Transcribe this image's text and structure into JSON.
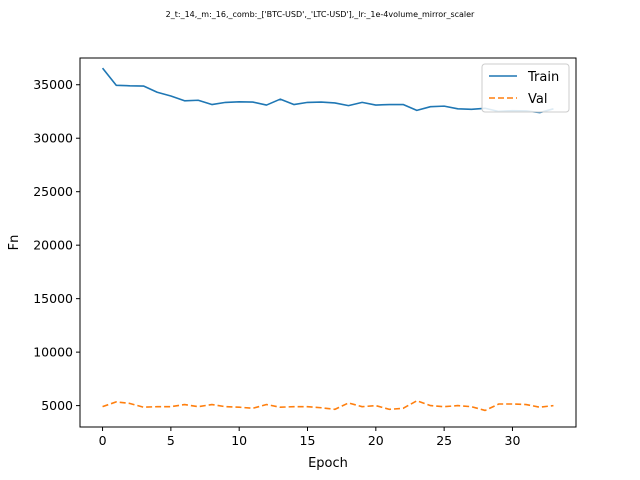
{
  "chart_data": {
    "type": "line",
    "title": "2_t:_14,_m:_16,_comb:_['BTC-USD',_'LTC-USD'],_lr:_1e-4volume_mirror_scaler",
    "xlabel": "Epoch",
    "ylabel": "Fn",
    "xlim": [
      -1.65,
      34.65
    ],
    "ylim": [
      3000,
      37500
    ],
    "xticks": [
      0,
      5,
      10,
      15,
      20,
      25,
      30
    ],
    "yticks": [
      5000,
      10000,
      15000,
      20000,
      25000,
      30000,
      35000
    ],
    "grid": false,
    "legend_position": "top-right",
    "x": [
      0,
      1,
      2,
      3,
      4,
      5,
      6,
      7,
      8,
      9,
      10,
      11,
      12,
      13,
      14,
      15,
      16,
      17,
      18,
      19,
      20,
      21,
      22,
      23,
      24,
      25,
      26,
      27,
      28,
      29,
      30,
      31,
      32,
      33
    ],
    "series": [
      {
        "name": "Train",
        "color": "#1f77b4",
        "style": "solid",
        "values": [
          36550,
          34950,
          34900,
          34880,
          34300,
          33950,
          33500,
          33550,
          33150,
          33350,
          33400,
          33380,
          33100,
          33650,
          33150,
          33350,
          33380,
          33300,
          33050,
          33350,
          33100,
          33150,
          33150,
          32600,
          32950,
          33000,
          32750,
          32700,
          32800,
          32500,
          32580,
          32550,
          32400,
          32750
        ]
      },
      {
        "name": "Val",
        "color": "#ff7f0e",
        "style": "dashed",
        "values": [
          4900,
          5350,
          5200,
          4850,
          4900,
          4900,
          5100,
          4900,
          5100,
          4900,
          4850,
          4750,
          5100,
          4850,
          4900,
          4900,
          4800,
          4650,
          5250,
          4900,
          5000,
          4650,
          4750,
          5450,
          5000,
          4900,
          5000,
          4900,
          4550,
          5150,
          5150,
          5100,
          4850,
          5000
        ]
      }
    ]
  }
}
